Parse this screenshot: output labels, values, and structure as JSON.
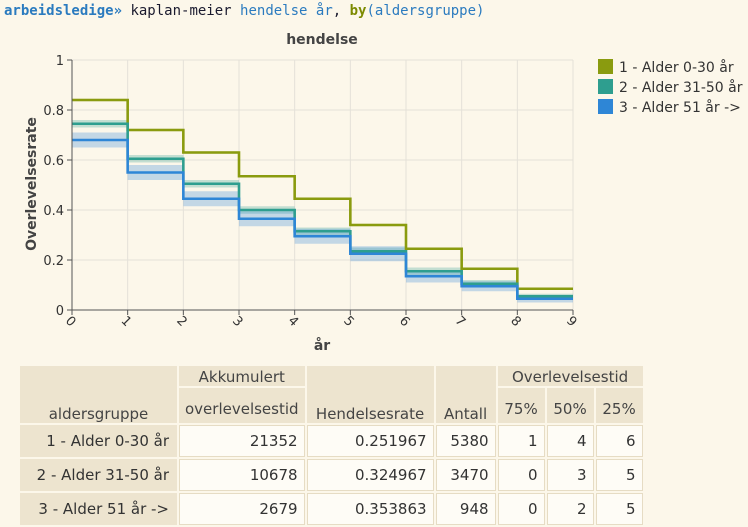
{
  "command": {
    "prompt": "arbeidsledige»",
    "text_before": " kaplan-meier ",
    "var_name": "hendelse år",
    "separator": ", ",
    "keyword": "by",
    "arg": "(aldersgruppe)"
  },
  "chart_data": {
    "type": "line",
    "step": true,
    "title": "hendelse",
    "xlabel": "år",
    "ylabel": "Overlevelsesrate",
    "xlim": [
      0,
      9
    ],
    "ylim": [
      0,
      1
    ],
    "xticks": [
      "0",
      "1",
      "2",
      "3",
      "4",
      "5",
      "6",
      "7",
      "8",
      "9"
    ],
    "yticks": [
      "0",
      "0.2",
      "0.4",
      "0.6",
      "0.8",
      "1"
    ],
    "grid": true,
    "legend_position": "right",
    "x": [
      0,
      1,
      2,
      3,
      4,
      5,
      6,
      7,
      8,
      9
    ],
    "series": [
      {
        "name": "1 - Alder 0-30 år",
        "color": "#8a9b0f",
        "values": [
          0.84,
          0.72,
          0.63,
          0.535,
          0.445,
          0.34,
          0.245,
          0.165,
          0.085,
          0.085
        ],
        "ci_lower": [
          0.835,
          0.715,
          0.625,
          0.53,
          0.44,
          0.335,
          0.24,
          0.16,
          0.08,
          0.08
        ],
        "ci_upper": [
          0.845,
          0.725,
          0.635,
          0.54,
          0.45,
          0.345,
          0.25,
          0.17,
          0.09,
          0.09
        ]
      },
      {
        "name": "2 - Alder 31-50 år",
        "color": "#2e9e8f",
        "values": [
          0.745,
          0.605,
          0.505,
          0.4,
          0.315,
          0.235,
          0.155,
          0.105,
          0.055,
          0.055
        ],
        "ci_lower": [
          0.73,
          0.59,
          0.49,
          0.385,
          0.3,
          0.22,
          0.14,
          0.09,
          0.045,
          0.045
        ],
        "ci_upper": [
          0.76,
          0.62,
          0.52,
          0.415,
          0.33,
          0.25,
          0.17,
          0.12,
          0.065,
          0.065
        ]
      },
      {
        "name": "3 - Alder 51 år ->",
        "color": "#2e86d6",
        "values": [
          0.68,
          0.55,
          0.445,
          0.365,
          0.295,
          0.225,
          0.135,
          0.095,
          0.045,
          0.045
        ],
        "ci_lower": [
          0.65,
          0.52,
          0.415,
          0.335,
          0.265,
          0.195,
          0.11,
          0.075,
          0.03,
          0.03
        ],
        "ci_upper": [
          0.71,
          0.58,
          0.475,
          0.395,
          0.325,
          0.255,
          0.16,
          0.115,
          0.06,
          0.06
        ]
      }
    ]
  },
  "table": {
    "headers": {
      "group": "aldersgruppe",
      "akk_line1": "Akkumulert",
      "akk_line2": "overlevelsestid",
      "hendelsesrate": "Hendelsesrate",
      "antall": "Antall",
      "overlevelsestid": "Overlevelsestid",
      "q75": "75%",
      "q50": "50%",
      "q25": "25%"
    },
    "rows": [
      {
        "group": "1 - Alder 0-30 år",
        "akk": "21352",
        "rate": "0.251967",
        "antall": "5380",
        "q75": "1",
        "q50": "4",
        "q25": "6"
      },
      {
        "group": "2 - Alder 31-50 år",
        "akk": "10678",
        "rate": "0.324967",
        "antall": "3470",
        "q75": "0",
        "q50": "3",
        "q25": "5"
      },
      {
        "group": "3 - Alder 51 år ->",
        "akk": "2679",
        "rate": "0.353863",
        "antall": "948",
        "q75": "0",
        "q50": "2",
        "q25": "5"
      }
    ]
  }
}
